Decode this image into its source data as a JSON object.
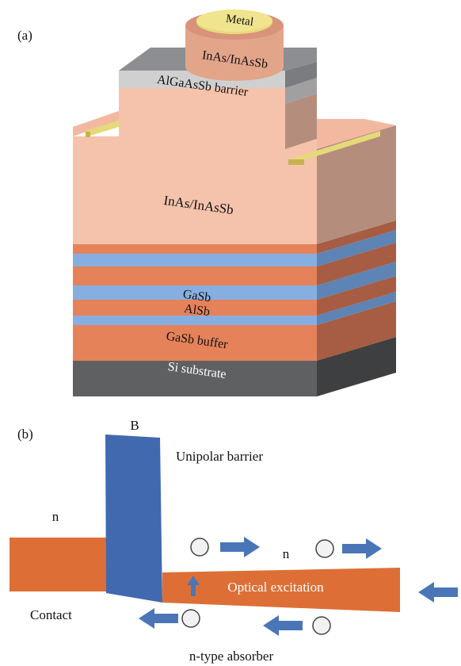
{
  "panel_a": {
    "label": "(a)",
    "layers": {
      "metal": "Metal",
      "top_cap": "InAs/InAsSb",
      "barrier": "AlGaAsSb barrier",
      "absorber": "InAs/InAsSb",
      "gasb": "GaSb",
      "alsb": "AlSb",
      "buffer": "GaSb buffer",
      "substrate": "Si substrate"
    }
  },
  "panel_b": {
    "label": "(b)",
    "barrier_letter": "B",
    "barrier_label": "Unipolar barrier",
    "contact_doping": "n",
    "absorber_doping": "n",
    "contact_label": "Contact",
    "excitation_label": "Optical excitation",
    "absorber_label": "n-type absorber"
  },
  "colors": {
    "salmon_front": "#f5c3ab",
    "salmon_side": "#b48d7d",
    "salmon_top": "#f3b9a0",
    "orange_front": "#e5825a",
    "orange_side": "#a65d43",
    "blue_front": "#87aee0",
    "blue_side": "#5e83b5",
    "gray_barrier": "#d0d0d0",
    "gray_top": "#8c8e92",
    "substrate_front": "#5f6062",
    "substrate_side": "#3e3f41",
    "metal_gold": "#e6d97a",
    "band_orange": "#dd6f36",
    "barrier_blue": "#4169b0",
    "arrow_blue": "#4a76b8"
  }
}
